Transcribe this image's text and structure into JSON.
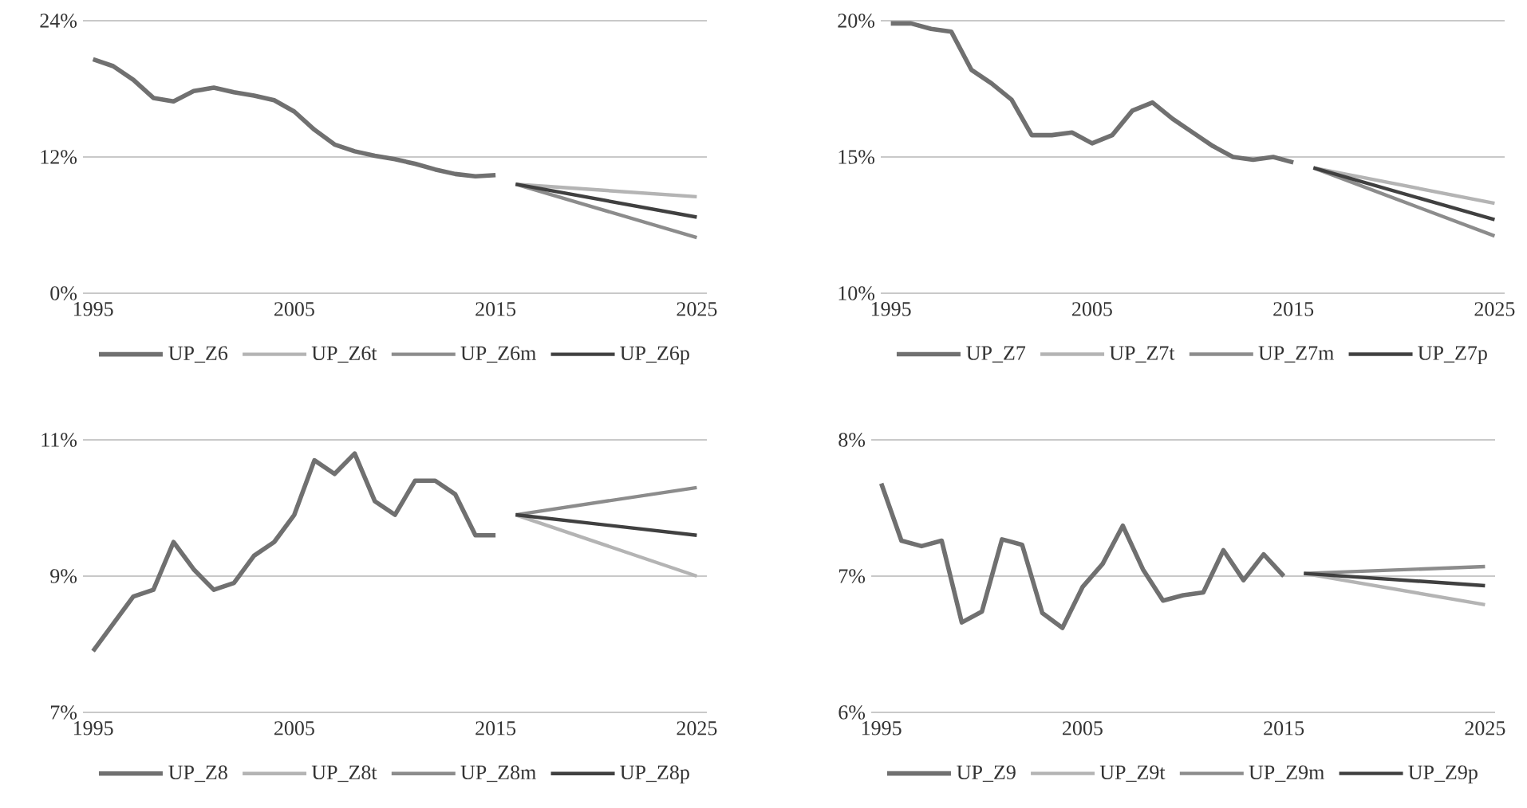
{
  "chart_data": [
    {
      "type": "line",
      "xlim": [
        1994.5,
        2025.5
      ],
      "xticks": [
        1995,
        2005,
        2015,
        2025
      ],
      "ylim": [
        0,
        24
      ],
      "yticks": [
        {
          "value": 0,
          "label": "0%"
        },
        {
          "value": 12,
          "label": "12%"
        },
        {
          "value": 24,
          "label": "24%"
        }
      ],
      "grid": "y",
      "legend": "bottom",
      "series": [
        {
          "name": "UP_Z6",
          "color": "#707070",
          "x": [
            1995,
            1996,
            1997,
            1998,
            1999,
            2000,
            2001,
            2002,
            2003,
            2004,
            2005,
            2006,
            2007,
            2008,
            2009,
            2010,
            2011,
            2012,
            2013,
            2014,
            2015
          ],
          "values": [
            20.6,
            20.0,
            18.8,
            17.2,
            16.9,
            17.8,
            18.1,
            17.7,
            17.4,
            17.0,
            16.0,
            14.4,
            13.1,
            12.5,
            12.1,
            11.8,
            11.4,
            10.9,
            10.5,
            10.3,
            10.4
          ]
        },
        {
          "name": "UP_Z6t",
          "color": "#b4b4b4",
          "x": [
            2016,
            2025
          ],
          "values": [
            9.6,
            8.5
          ]
        },
        {
          "name": "UP_Z6m",
          "color": "#8c8c8c",
          "x": [
            2016,
            2025
          ],
          "values": [
            9.6,
            4.9
          ]
        },
        {
          "name": "UP_Z6p",
          "color": "#404040",
          "x": [
            2016,
            2025
          ],
          "values": [
            9.6,
            6.7
          ]
        }
      ]
    },
    {
      "type": "line",
      "xlim": [
        1994.5,
        2025.5
      ],
      "xticks": [
        1995,
        2005,
        2015,
        2025
      ],
      "ylim": [
        10,
        20
      ],
      "yticks": [
        {
          "value": 10,
          "label": "10%"
        },
        {
          "value": 15,
          "label": "15%"
        },
        {
          "value": 20,
          "label": "20%"
        }
      ],
      "grid": "y",
      "legend": "bottom",
      "series": [
        {
          "name": "UP_Z7",
          "color": "#707070",
          "x": [
            1995,
            1996,
            1997,
            1998,
            1999,
            2000,
            2001,
            2002,
            2003,
            2004,
            2005,
            2006,
            2007,
            2008,
            2009,
            2010,
            2011,
            2012,
            2013,
            2014,
            2015
          ],
          "values": [
            19.9,
            19.9,
            19.7,
            19.6,
            18.2,
            17.7,
            17.1,
            15.8,
            15.8,
            15.9,
            15.5,
            15.8,
            16.7,
            17.0,
            16.4,
            15.9,
            15.4,
            15.0,
            14.9,
            15.0,
            14.8
          ]
        },
        {
          "name": "UP_Z7t",
          "color": "#b4b4b4",
          "x": [
            2016,
            2025
          ],
          "values": [
            14.6,
            13.3
          ]
        },
        {
          "name": "UP_Z7m",
          "color": "#8c8c8c",
          "x": [
            2016,
            2025
          ],
          "values": [
            14.6,
            12.1
          ]
        },
        {
          "name": "UP_Z7p",
          "color": "#404040",
          "x": [
            2016,
            2025
          ],
          "values": [
            14.6,
            12.7
          ]
        }
      ]
    },
    {
      "type": "line",
      "xlim": [
        1994.5,
        2025.5
      ],
      "xticks": [
        1995,
        2005,
        2015,
        2025
      ],
      "ylim": [
        7,
        11
      ],
      "yticks": [
        {
          "value": 7,
          "label": "7%"
        },
        {
          "value": 9,
          "label": "9%"
        },
        {
          "value": 11,
          "label": "11%"
        }
      ],
      "grid": "y",
      "legend": "bottom",
      "series": [
        {
          "name": "UP_Z8",
          "color": "#707070",
          "x": [
            1995,
            1996,
            1997,
            1998,
            1999,
            2000,
            2001,
            2002,
            2003,
            2004,
            2005,
            2006,
            2007,
            2008,
            2009,
            2010,
            2011,
            2012,
            2013,
            2014,
            2015
          ],
          "values": [
            7.9,
            8.3,
            8.7,
            8.8,
            9.5,
            9.1,
            8.8,
            8.9,
            9.3,
            9.5,
            9.9,
            10.7,
            10.5,
            10.8,
            10.1,
            9.9,
            10.4,
            10.4,
            10.2,
            9.6,
            9.6
          ]
        },
        {
          "name": "UP_Z8t",
          "color": "#b4b4b4",
          "x": [
            2016,
            2025
          ],
          "values": [
            9.9,
            9.0
          ]
        },
        {
          "name": "UP_Z8m",
          "color": "#8c8c8c",
          "x": [
            2016,
            2025
          ],
          "values": [
            9.9,
            10.3
          ]
        },
        {
          "name": "UP_Z8p",
          "color": "#404040",
          "x": [
            2016,
            2025
          ],
          "values": [
            9.9,
            9.6
          ]
        }
      ]
    },
    {
      "type": "line",
      "xlim": [
        1994.5,
        2025.5
      ],
      "xticks": [
        1995,
        2005,
        2015,
        2025
      ],
      "ylim": [
        6,
        8
      ],
      "yticks": [
        {
          "value": 6,
          "label": "6%"
        },
        {
          "value": 7,
          "label": "7%"
        },
        {
          "value": 8,
          "label": "8%"
        }
      ],
      "grid": "y",
      "legend": "bottom",
      "series": [
        {
          "name": "UP_Z9",
          "color": "#707070",
          "x": [
            1995,
            1996,
            1997,
            1998,
            1999,
            2000,
            2001,
            2002,
            2003,
            2004,
            2005,
            2006,
            2007,
            2008,
            2009,
            2010,
            2011,
            2012,
            2013,
            2014,
            2015
          ],
          "values": [
            7.68,
            7.26,
            7.22,
            7.26,
            6.66,
            6.74,
            7.27,
            7.23,
            6.73,
            6.62,
            6.92,
            7.09,
            7.37,
            7.05,
            6.82,
            6.86,
            6.88,
            7.19,
            6.97,
            7.16,
            7.0
          ]
        },
        {
          "name": "UP_Z9t",
          "color": "#b4b4b4",
          "x": [
            2016,
            2025
          ],
          "values": [
            7.02,
            6.79
          ]
        },
        {
          "name": "UP_Z9m",
          "color": "#8c8c8c",
          "x": [
            2016,
            2025
          ],
          "values": [
            7.02,
            7.07
          ]
        },
        {
          "name": "UP_Z9p",
          "color": "#404040",
          "x": [
            2016,
            2025
          ],
          "values": [
            7.02,
            6.93
          ]
        }
      ]
    }
  ]
}
